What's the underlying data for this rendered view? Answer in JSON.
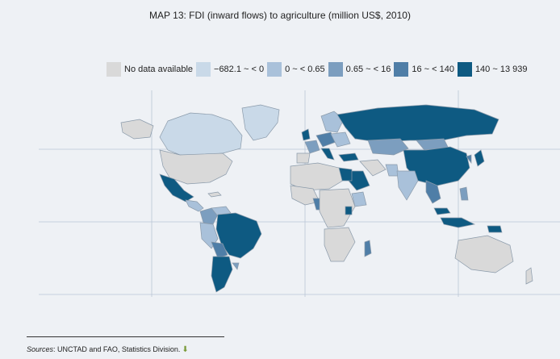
{
  "title": "MAP 13: FDI (inward flows) to agriculture (million US$, 2010)",
  "legend": [
    {
      "label": "No data available",
      "color": "#d9d9d9"
    },
    {
      "label": "−682.1 ~ < 0",
      "color": "#c9d9e8"
    },
    {
      "label": "0 ~ < 0.65",
      "color": "#a9c1da"
    },
    {
      "label": "0.65 ~ < 16",
      "color": "#7c9ebf"
    },
    {
      "label": "16 ~ < 140",
      "color": "#4f7ea7"
    },
    {
      "label": "140 ~ 13 939",
      "color": "#0e5a82"
    }
  ],
  "sources": {
    "prefix": "Sources",
    "text": ": UNCTAD and FAO, Statistics Division.",
    "icon": "download-icon"
  }
}
